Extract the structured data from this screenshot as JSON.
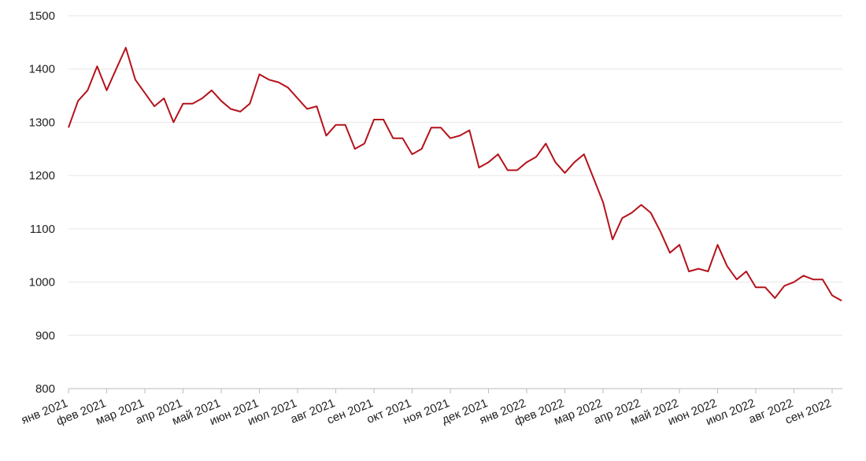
{
  "chart_data": {
    "type": "line",
    "categories": [
      "янв 2021",
      null,
      null,
      null,
      "фев 2021",
      null,
      null,
      null,
      "мар 2021",
      null,
      null,
      null,
      "апр 2021",
      null,
      null,
      null,
      "май 2021",
      null,
      null,
      null,
      "июн 2021",
      null,
      null,
      null,
      "июл 2021",
      null,
      null,
      null,
      "авг 2021",
      null,
      null,
      null,
      "сен 2021",
      null,
      null,
      null,
      "окт 2021",
      null,
      null,
      null,
      "ноя 2021",
      null,
      null,
      null,
      "дек 2021",
      null,
      null,
      null,
      "янв 2022",
      null,
      null,
      null,
      "фев 2022",
      null,
      null,
      null,
      "мар 2022",
      null,
      null,
      null,
      "апр 2022",
      null,
      null,
      null,
      "май 2022",
      null,
      null,
      null,
      "июн 2022",
      null,
      null,
      null,
      "июл 2022",
      null,
      null,
      null,
      "авг 2022",
      null,
      null,
      null,
      "сен 2022",
      null
    ],
    "series": [
      {
        "color": "#b5121b",
        "values": [
          1290,
          1340,
          1360,
          1405,
          1360,
          1400,
          1440,
          1380,
          1355,
          1330,
          1345,
          1300,
          1335,
          1335,
          1345,
          1360,
          1340,
          1325,
          1320,
          1335,
          1390,
          1380,
          1375,
          1365,
          1345,
          1325,
          1330,
          1275,
          1295,
          1295,
          1250,
          1260,
          1305,
          1305,
          1270,
          1270,
          1240,
          1250,
          1290,
          1290,
          1270,
          1275,
          1285,
          1215,
          1225,
          1240,
          1210,
          1210,
          1225,
          1235,
          1260,
          1225,
          1205,
          1225,
          1240,
          1195,
          1150,
          1080,
          1120,
          1130,
          1145,
          1130,
          1095,
          1055,
          1070,
          1020,
          1025,
          1020,
          1070,
          1030,
          1005,
          1020,
          990,
          990,
          970,
          993,
          1000,
          1012,
          1005,
          1005,
          975,
          965
        ]
      }
    ],
    "ylim": [
      800,
      1500
    ],
    "yticks": [
      800,
      900,
      1000,
      1100,
      1200,
      1300,
      1400,
      1500
    ],
    "grid": true
  }
}
